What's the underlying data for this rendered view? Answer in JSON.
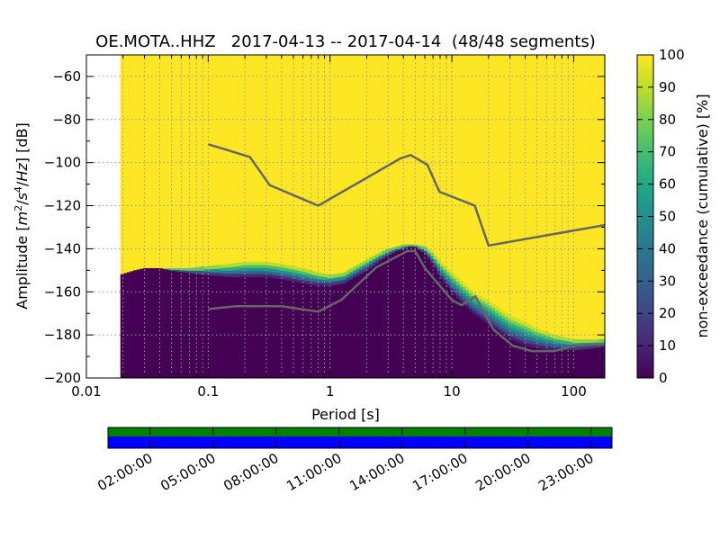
{
  "chart_data": [
    {
      "type": "heatmap",
      "title": "OE.MOTA..HHZ   2017-04-13 -- 2017-04-14  (48/48 segments)",
      "xlabel": "Period [s]",
      "ylabel": "Amplitude [m²/s⁴/Hz] [dB]",
      "xscale": "log",
      "xlim": [
        0.01,
        180
      ],
      "ylim": [
        -200,
        -50
      ],
      "xticks": [
        0.01,
        0.1,
        1,
        10,
        100
      ],
      "xtick_labels": [
        "0.01",
        "0.1",
        "1",
        "10",
        "100"
      ],
      "yticks": [
        -60,
        -80,
        -100,
        -120,
        -140,
        -160,
        -180,
        -200
      ],
      "ytick_labels": [
        "−60",
        "−80",
        "−100",
        "−120",
        "−140",
        "−160",
        "−180",
        "−200"
      ],
      "data_period_start": 0.019,
      "psd_envelope": {
        "period": [
          0.019,
          0.025,
          0.03,
          0.04,
          0.05,
          0.07,
          0.1,
          0.15,
          0.2,
          0.3,
          0.4,
          0.5,
          0.6,
          0.8,
          1.0,
          1.3,
          1.6,
          2.0,
          2.5,
          3.0,
          3.5,
          4.0,
          4.5,
          5.0,
          6.0,
          7.0,
          8.0,
          10,
          12,
          15,
          20,
          25,
          30,
          40,
          50,
          70,
          100,
          150,
          180
        ],
        "p_bottom": [
          -152,
          -150,
          -149,
          -149,
          -150,
          -151,
          -152,
          -153,
          -153,
          -153,
          -154,
          -155,
          -156,
          -157,
          -157,
          -156,
          -153,
          -150,
          -146,
          -143,
          -141,
          -140,
          -139,
          -139,
          -142,
          -147,
          -153,
          -160,
          -165,
          -170,
          -175,
          -179,
          -182,
          -185,
          -186,
          -187,
          -187,
          -186,
          -185
        ],
        "p_mode": [
          -152,
          -150,
          -149,
          -149,
          -150,
          -151,
          -152,
          -153,
          -154,
          -155,
          -156,
          -157,
          -158,
          -160,
          -160,
          -158,
          -155,
          -151,
          -147,
          -144,
          -142,
          -141,
          -140,
          -140,
          -143,
          -148,
          -154,
          -160,
          -164,
          -168,
          -172,
          -176,
          -179,
          -182,
          -184,
          -186,
          -186,
          -185,
          -184
        ],
        "p_top": [
          -152,
          -150,
          -149,
          -149,
          -149,
          -149,
          -148,
          -147,
          -146,
          -146,
          -147,
          -148,
          -149,
          -151,
          -152,
          -151,
          -148,
          -145,
          -142,
          -140,
          -139,
          -138,
          -138,
          -138,
          -139,
          -142,
          -146,
          -151,
          -155,
          -160,
          -164,
          -168,
          -171,
          -174,
          -177,
          -180,
          -182,
          -182,
          -182
        ]
      },
      "nhnm": {
        "period": [
          0.1,
          0.22,
          0.32,
          0.8,
          3.8,
          4.6,
          6.3,
          7.9,
          15.4,
          20,
          180
        ],
        "db": [
          -91.5,
          -97.4,
          -110.5,
          -120,
          -98,
          -96.5,
          -101,
          -113.5,
          -120,
          -138.5,
          -129
        ]
      },
      "nlnm": {
        "period": [
          0.1,
          0.17,
          0.4,
          0.8,
          1.24,
          2.4,
          4.3,
          5.0,
          6.0,
          10,
          12,
          15.6,
          21.9,
          31.6,
          45,
          70,
          101,
          154,
          180
        ],
        "db": [
          -168,
          -166.7,
          -166.7,
          -169.2,
          -163.7,
          -148.6,
          -141.1,
          -141.1,
          -149,
          -163.8,
          -166.2,
          -162.1,
          -177.5,
          -185,
          -187.5,
          -187.5,
          -185,
          -184.4,
          -184
        ]
      },
      "colorbar": {
        "label": "non-exceedance (cumulative) [%]",
        "range": [
          0,
          100
        ],
        "ticks": [
          0,
          10,
          20,
          30,
          40,
          50,
          60,
          70,
          80,
          90,
          100
        ],
        "tick_labels": [
          "0",
          "10",
          "20",
          "30",
          "40",
          "50",
          "60",
          "70",
          "80",
          "90",
          "100"
        ]
      }
    },
    {
      "type": "timeline",
      "xlim_hours": [
        0,
        24
      ],
      "segments_top_color": "#008000",
      "segments_bottom_color": "#0000ff",
      "segment_count": 48,
      "xticks_hours": [
        2,
        5,
        8,
        11,
        14,
        17,
        20,
        23
      ],
      "xtick_labels": [
        "02:00:00",
        "05:00:00",
        "08:00:00",
        "11:00:00",
        "14:00:00",
        "17:00:00",
        "20:00:00",
        "23:00:00"
      ]
    }
  ],
  "colors": {
    "background_fill": "#fde725",
    "low_fill": "#440154",
    "noise_model_line": "#666666"
  }
}
